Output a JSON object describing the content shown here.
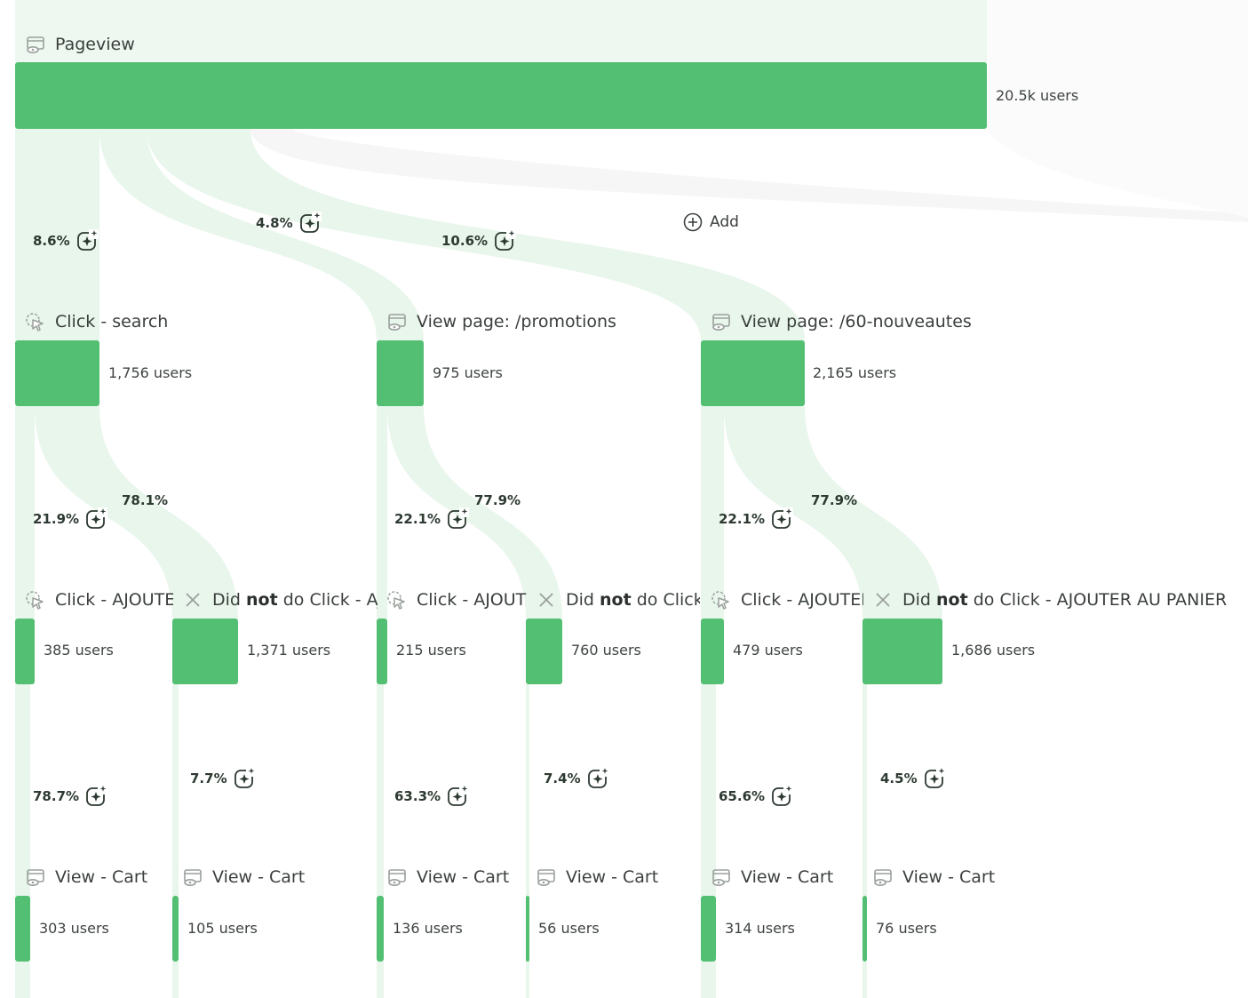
{
  "colors": {
    "bar": "#53bf72",
    "flow": "#e8f6ec",
    "flow_drop": "#f5f5f5",
    "text": "#3a3f3c"
  },
  "add_label": "Add",
  "steps": {
    "pageview": {
      "label": "Pageview",
      "users": "20.5k users",
      "icon": "pageview-icon"
    },
    "search": {
      "label": "Click - search",
      "users": "1,756 users",
      "pct": "8.6%",
      "icon": "click-cursor-icon"
    },
    "promotions": {
      "label": "View page: /promotions",
      "users": "975 users",
      "pct": "4.8%",
      "icon": "pageview-icon"
    },
    "nouveautes": {
      "label": "View page: /60-nouveautes",
      "users": "2,165 users",
      "pct": "10.6%",
      "icon": "pageview-icon"
    },
    "s_add": {
      "label": "Click - AJOUTER AU PANIER",
      "users": "385 users",
      "pct": "21.9%",
      "icon": "click-cursor-icon"
    },
    "s_not": {
      "pre": "Did ",
      "strong": "not",
      "post": " do Click - AJOUTER AU PANIER",
      "users": "1,371 users",
      "pct": "78.1%",
      "icon": "close-icon"
    },
    "p_add": {
      "label": "Click - AJOUTER AU PANIER",
      "users": "215 users",
      "pct": "22.1%",
      "icon": "click-cursor-icon"
    },
    "p_not": {
      "pre": "Did ",
      "strong": "not",
      "post": " do Click - AJOUTER AU PANIER",
      "users": "760 users",
      "pct": "77.9%",
      "icon": "close-icon"
    },
    "n_add": {
      "label": "Click - AJOUTER AU PANIER",
      "users": "479 users",
      "pct": "22.1%",
      "icon": "click-cursor-icon"
    },
    "n_not": {
      "pre": "Did ",
      "strong": "not",
      "post": " do Click - AJOUTER AU PANIER",
      "users": "1,686 users",
      "pct": "77.9%",
      "icon": "close-icon"
    },
    "c1": {
      "label": "View - Cart",
      "users": "303 users",
      "pct": "78.7%",
      "icon": "pageview-icon"
    },
    "c2": {
      "label": "View - Cart",
      "users": "105 users",
      "pct": "7.7%",
      "icon": "pageview-icon"
    },
    "c3": {
      "label": "View - Cart",
      "users": "136 users",
      "pct": "63.3%",
      "icon": "pageview-icon"
    },
    "c4": {
      "label": "View - Cart",
      "users": "56 users",
      "pct": "7.4%",
      "icon": "pageview-icon"
    },
    "c5": {
      "label": "View - Cart",
      "users": "314 users",
      "pct": "65.6%",
      "icon": "pageview-icon"
    },
    "c6": {
      "label": "View - Cart",
      "users": "76 users",
      "pct": "4.5%",
      "icon": "pageview-icon"
    }
  }
}
